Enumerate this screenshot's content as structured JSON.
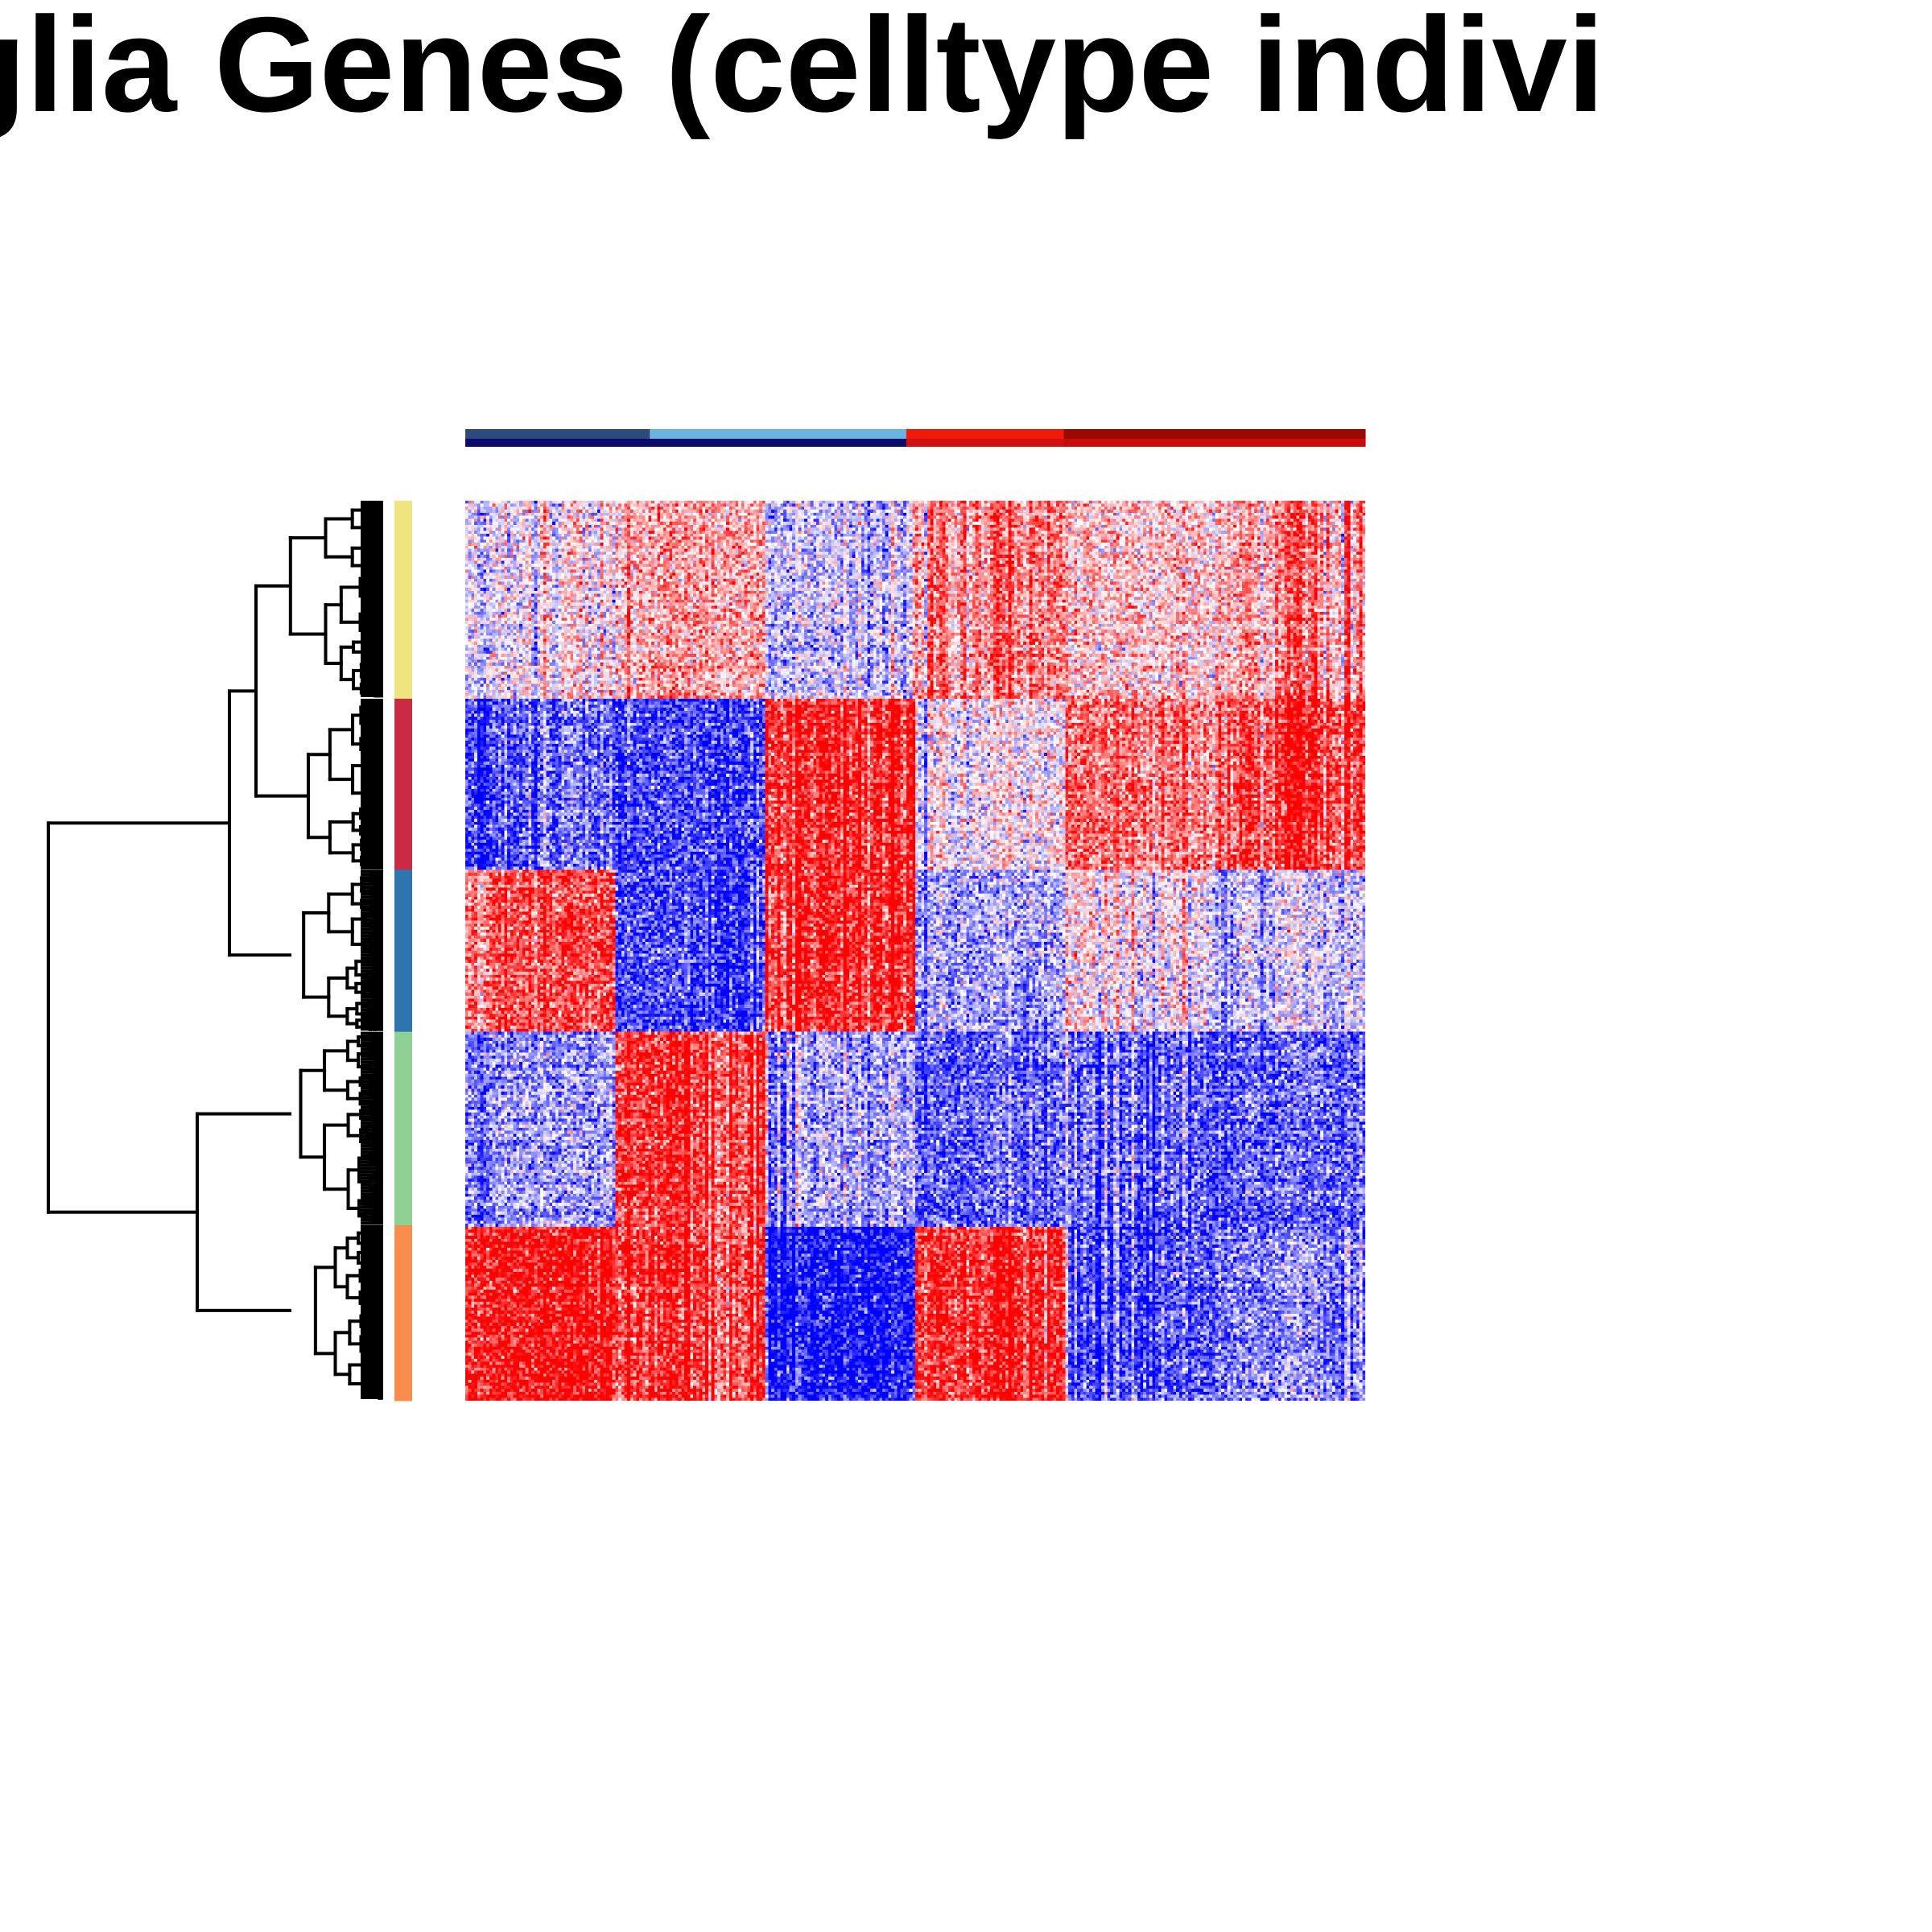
{
  "colors": {
    "low": "#0000ff",
    "mid": "#ffffff",
    "high": "#ff0000",
    "dendrogram": "#000000"
  },
  "chart_data": {
    "type": "heatmap",
    "title": "glia Genes (celltype indivi",
    "subtitle": "",
    "xlabel": "",
    "ylabel": "",
    "color_scale": [
      "#0000ff",
      "#ffffff",
      "#ff0000"
    ],
    "column_groups": [
      {
        "fraction": 0.205,
        "top_color": "#2c4a7a",
        "bottom_color": "#0a0a6e"
      },
      {
        "fraction": 0.285,
        "top_color": "#6ab5e0",
        "bottom_color": "#0a0a6e"
      },
      {
        "fraction": 0.175,
        "top_color": "#f01a0a",
        "bottom_color": "#d10f0f"
      },
      {
        "fraction": 0.335,
        "top_color": "#990a00",
        "bottom_color": "#cc0a0a"
      }
    ],
    "row_clusters": [
      {
        "color": "#f0e480",
        "fraction": 0.22
      },
      {
        "color": "#c92b44",
        "fraction": 0.19
      },
      {
        "color": "#2e74ae",
        "fraction": 0.18
      },
      {
        "color": "#8fd094",
        "fraction": 0.215
      },
      {
        "color": "#f88d4e",
        "fraction": 0.195
      }
    ],
    "block_pattern": [
      [
        0,
        0.3,
        -0.2,
        0.4,
        0.2,
        0.3
      ],
      [
        -0.5,
        -0.6,
        0.7,
        0.0,
        0.5,
        0.6
      ],
      [
        0.6,
        -0.6,
        0.7,
        -0.3,
        0.1,
        -0.2
      ],
      [
        -0.3,
        0.7,
        -0.3,
        -0.5,
        -0.4,
        -0.5
      ],
      [
        0.8,
        0.7,
        -0.8,
        0.7,
        -0.5,
        -0.4
      ]
    ],
    "grid": false,
    "legend": "none"
  }
}
